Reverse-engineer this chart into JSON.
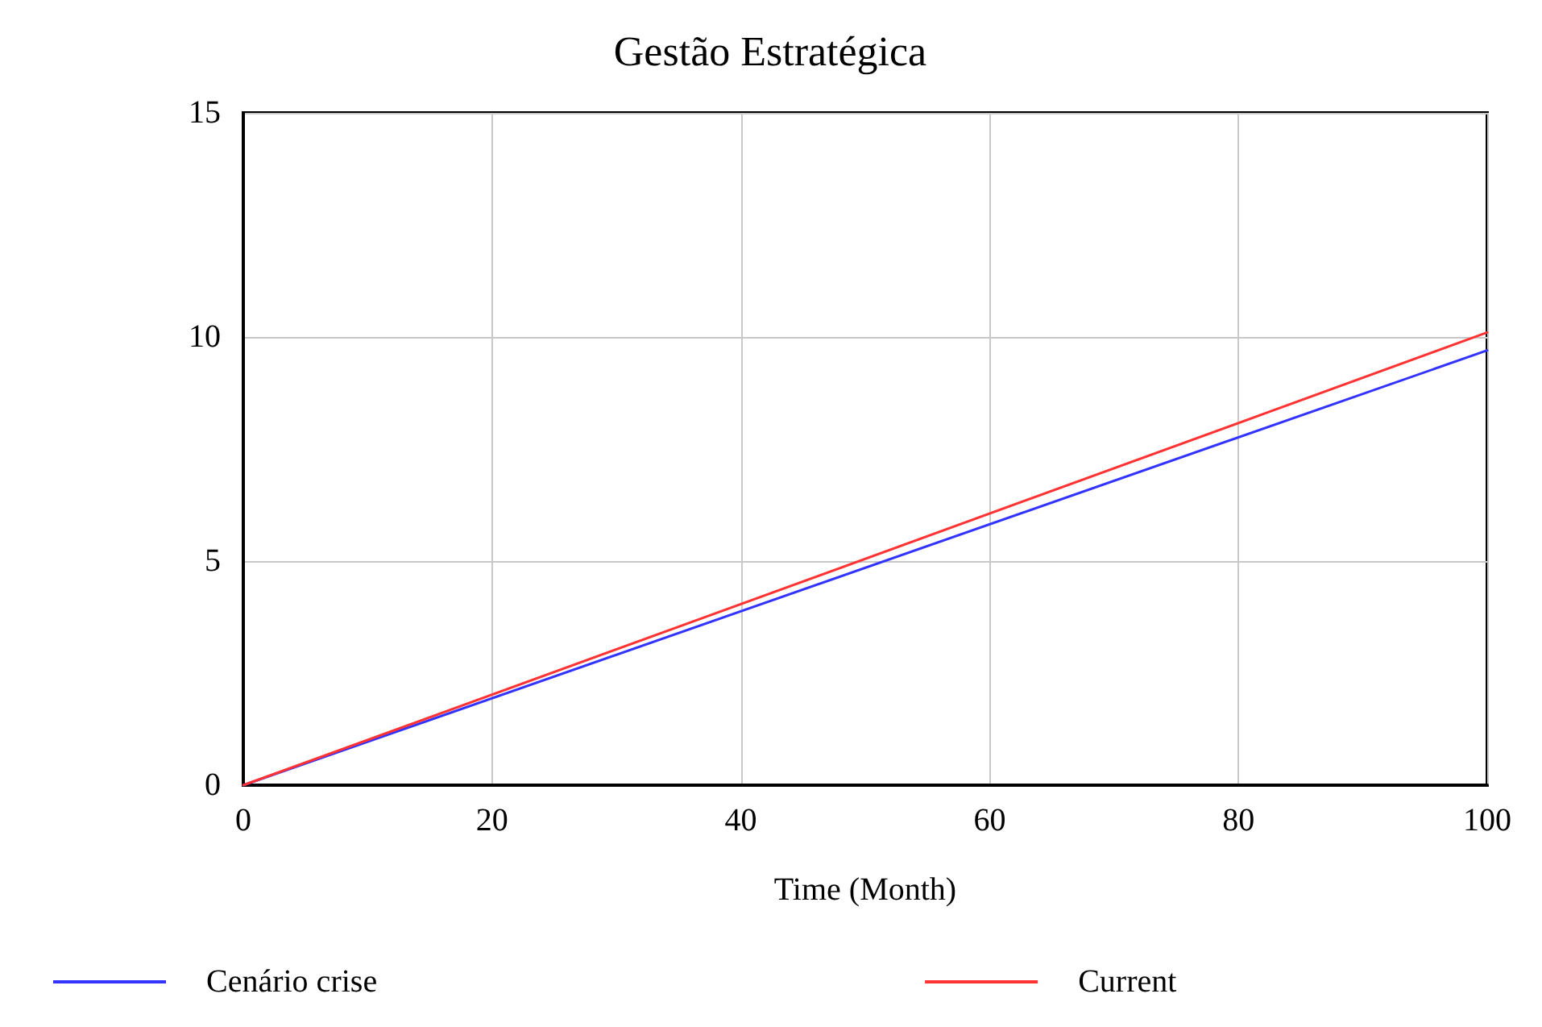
{
  "chart_data": {
    "type": "line",
    "title": "Gestão Estratégica",
    "xlabel": "Time (Month)",
    "x": [
      0,
      100
    ],
    "series": [
      {
        "name": "Cenário crise",
        "color": "#3333ff",
        "values": [
          0,
          9.7
        ]
      },
      {
        "name": "Current",
        "color": "#ff3333",
        "values": [
          0,
          10.1
        ]
      }
    ],
    "xlim": [
      0,
      100
    ],
    "xticks": [
      0,
      20,
      40,
      60,
      80,
      100
    ],
    "ylim": [
      0,
      15
    ],
    "yticks": [
      0,
      5,
      10,
      15
    ],
    "grid": true,
    "legend": "bottom",
    "marker": "none",
    "line_style": "solid"
  }
}
